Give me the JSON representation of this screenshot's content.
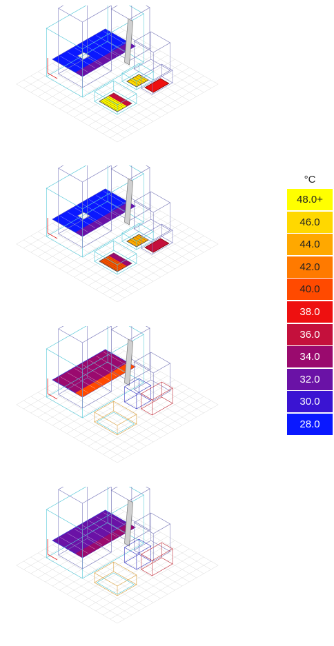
{
  "legend": {
    "unit": "°C",
    "entries": [
      {
        "label": "48.0+",
        "color": "#ffff00",
        "text_color": "#222222"
      },
      {
        "label": "46.0",
        "color": "#ffd800",
        "text_color": "#222222"
      },
      {
        "label": "44.0",
        "color": "#ffa800",
        "text_color": "#222222"
      },
      {
        "label": "42.0",
        "color": "#ff7a00",
        "text_color": "#222222"
      },
      {
        "label": "40.0",
        "color": "#ff4a00",
        "text_color": "#222222"
      },
      {
        "label": "38.0",
        "color": "#ee1010",
        "text_color": "#ffffff"
      },
      {
        "label": "36.0",
        "color": "#c4103c",
        "text_color": "#ffffff"
      },
      {
        "label": "34.0",
        "color": "#9a0a6e",
        "text_color": "#ffffff"
      },
      {
        "label": "32.0",
        "color": "#6a12a6",
        "text_color": "#ffffff"
      },
      {
        "label": "30.0",
        "color": "#3a14d2",
        "text_color": "#ffffff"
      },
      {
        "label": "28.0",
        "color": "#0a18ff",
        "text_color": "#ffffff"
      }
    ]
  },
  "panels": [
    {
      "zones": {
        "main": "#0a18ff",
        "main_edge": "#6a12a6",
        "center": "#ffd800",
        "shed": "#ee1010",
        "bottom": "#ffff00",
        "bottom_edge": "#c4103c"
      },
      "detailed": true
    },
    {
      "zones": {
        "main": "#0a18ff",
        "main_edge": "#6a12a6",
        "center": "#ffa800",
        "shed": "#c4103c",
        "bottom": "#ff4a00",
        "bottom_edge": "#9a0a6e"
      },
      "detailed": true
    },
    {
      "zones": {
        "main": "#9a0a6e",
        "main_edge": "#ff4a00",
        "center": "",
        "shed": "",
        "bottom": "",
        "bottom_edge": ""
      },
      "detailed": false
    },
    {
      "zones": {
        "main": "#6a12a6",
        "main_edge": "#9a0a6e",
        "center": "",
        "shed": "",
        "bottom": "",
        "bottom_edge": ""
      },
      "detailed": false
    }
  ]
}
